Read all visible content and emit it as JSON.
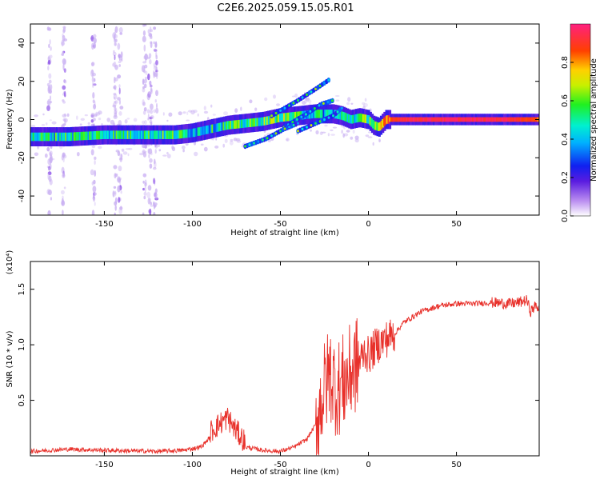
{
  "title": "C2E6.2025.059.15.05.R01",
  "colors": {
    "snr_line": "#e8302a",
    "spectrogram_faint": "#c9b0f2",
    "axis": "#000000"
  },
  "chart_data": [
    {
      "type": "heatmap",
      "xlabel": "Height of straight line (km)",
      "ylabel": "Frequency (Hz)",
      "xlim": [
        -192,
        97
      ],
      "ylim": [
        -50,
        50
      ],
      "xticks": [
        -150,
        -100,
        -50,
        0,
        50
      ],
      "xtick_labels": [
        "-150",
        "-100",
        "-50",
        "0",
        "50"
      ],
      "yticks": [
        -40,
        -20,
        0,
        20,
        40
      ],
      "ytick_labels": [
        "-40",
        "-20",
        "0",
        "20",
        "40"
      ],
      "colorbar": {
        "label": "Normalized spectral amplitude",
        "range": [
          0,
          1
        ],
        "ticks": [
          0.0,
          0.2,
          0.4,
          0.6,
          0.8
        ],
        "tick_labels": [
          "0.0",
          "0.2",
          "0.4",
          "0.6",
          "0.8"
        ]
      },
      "main_band": {
        "x": [
          -192,
          -170,
          -150,
          -130,
          -110,
          -100,
          -90,
          -80,
          -70,
          -60,
          -50,
          -40,
          -30,
          -20,
          -15,
          -10,
          -5,
          0,
          3,
          6,
          10,
          15,
          20,
          40,
          60,
          80,
          95
        ],
        "y": [
          -9,
          -9,
          -8,
          -8,
          -8,
          -7,
          -5,
          -3,
          -2,
          -1,
          1,
          2,
          3,
          3,
          2,
          0,
          1,
          0,
          -3,
          -4,
          0,
          0,
          0,
          0,
          0,
          0,
          0
        ],
        "amplitude": [
          0.45,
          0.5,
          0.5,
          0.5,
          0.5,
          0.45,
          0.45,
          0.5,
          0.5,
          0.55,
          0.6,
          0.5,
          0.45,
          0.4,
          0.45,
          0.5,
          0.5,
          0.6,
          0.6,
          0.6,
          0.75,
          0.9,
          0.95,
          0.95,
          0.95,
          0.95,
          0.85
        ]
      },
      "streaks": [
        {
          "x": [
            -55,
            -40,
            -30,
            -22
          ],
          "y": [
            2,
            10,
            16,
            21
          ]
        },
        {
          "x": [
            -48,
            -35,
            -27,
            -20
          ],
          "y": [
            -4,
            3,
            8,
            10
          ]
        },
        {
          "x": [
            -70,
            -58,
            -48,
            -40
          ],
          "y": [
            -14,
            -10,
            -5,
            -2
          ]
        },
        {
          "x": [
            -40,
            -30,
            -20,
            -15
          ],
          "y": [
            -6,
            -2,
            2,
            6
          ]
        }
      ],
      "faint_columns": [
        -181,
        -173,
        -156,
        -144,
        -141,
        -127,
        -124,
        -121
      ]
    },
    {
      "type": "line",
      "xlabel": "Height of straight line (km)",
      "ylabel": "SNR (10 * v/v)",
      "y_multiplier": "(x10⁴)",
      "xlim": [
        -192,
        97
      ],
      "ylim": [
        0,
        1.75
      ],
      "xticks": [
        -150,
        -100,
        -50,
        0,
        50
      ],
      "xtick_labels": [
        "-150",
        "-100",
        "-50",
        "0",
        "50"
      ],
      "yticks": [
        0.5,
        1.0,
        1.5
      ],
      "ytick_labels": [
        "0.5",
        "1.0",
        "1.5"
      ],
      "series": [
        {
          "x": [
            -192,
            -170,
            -150,
            -120,
            -105,
            -95,
            -88,
            -80,
            -76,
            -70,
            -60,
            -50,
            -42,
            -35,
            -30,
            -26,
            -22,
            -18,
            -15,
            -12,
            -8,
            -5,
            -2,
            0,
            5,
            10,
            15,
            20,
            25,
            30,
            40,
            50,
            60,
            70,
            80,
            85,
            90,
            92,
            95,
            97
          ],
          "y": [
            0.04,
            0.06,
            0.05,
            0.04,
            0.05,
            0.08,
            0.2,
            0.3,
            0.2,
            0.08,
            0.05,
            0.04,
            0.08,
            0.15,
            0.28,
            0.55,
            0.75,
            0.6,
            0.65,
            0.7,
            0.8,
            0.85,
            0.95,
            0.9,
            1.0,
            1.05,
            1.1,
            1.2,
            1.25,
            1.3,
            1.35,
            1.37,
            1.37,
            1.38,
            1.37,
            1.38,
            1.4,
            1.3,
            1.35,
            1.33
          ]
        }
      ]
    }
  ]
}
